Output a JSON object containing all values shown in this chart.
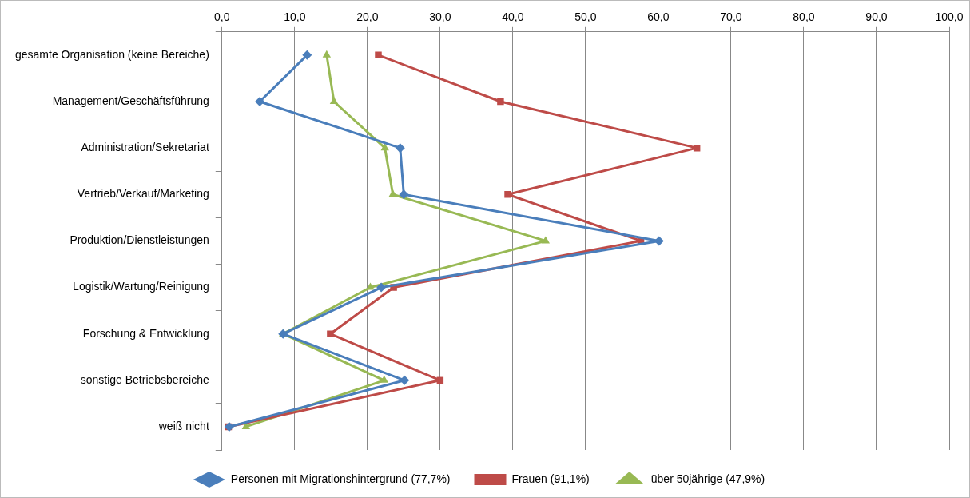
{
  "chart_data": {
    "type": "line",
    "orientation": "horizontal",
    "categories": [
      "gesamte Organisation (keine Bereiche)",
      "Management/Geschäftsführung",
      "Administration/Sekretariat",
      "Vertrieb/Verkauf/Marketing",
      "Produktion/Dienstleistungen",
      "Logistik/Wartung/Reinigung",
      "Forschung & Entwicklung",
      "sonstige Betriebsbereiche",
      "weiß nicht"
    ],
    "series": [
      {
        "name": "Personen mit Migrationshintergrund (77,7%)",
        "color": "#4a7ebb",
        "marker": "diamond",
        "values": [
          11.7,
          5.2,
          24.5,
          25.0,
          60.1,
          21.9,
          8.4,
          25.1,
          1.0
        ]
      },
      {
        "name": "Frauen (91,1%)",
        "color": "#be4b48",
        "marker": "square",
        "values": [
          21.5,
          38.3,
          65.3,
          39.3,
          57.6,
          23.6,
          14.9,
          30.0,
          0.9
        ]
      },
      {
        "name": "über 50jährige (47,9%)",
        "color": "#98b954",
        "marker": "triangle",
        "values": [
          14.4,
          15.4,
          22.4,
          23.5,
          44.5,
          20.4,
          8.4,
          22.3,
          3.3
        ]
      }
    ],
    "xlim": [
      0,
      100
    ],
    "xticks": [
      {
        "value": 0,
        "label": "0,0"
      },
      {
        "value": 10,
        "label": "10,0"
      },
      {
        "value": 20,
        "label": "20,0"
      },
      {
        "value": 30,
        "label": "30,0"
      },
      {
        "value": 40,
        "label": "40,0"
      },
      {
        "value": 50,
        "label": "50,0"
      },
      {
        "value": 60,
        "label": "60,0"
      },
      {
        "value": 70,
        "label": "70,0"
      },
      {
        "value": 80,
        "label": "80,0"
      },
      {
        "value": 90,
        "label": "90,0"
      },
      {
        "value": 100,
        "label": "100,0"
      }
    ],
    "grid": "x",
    "legend": "bottom",
    "line_style": "solid"
  }
}
